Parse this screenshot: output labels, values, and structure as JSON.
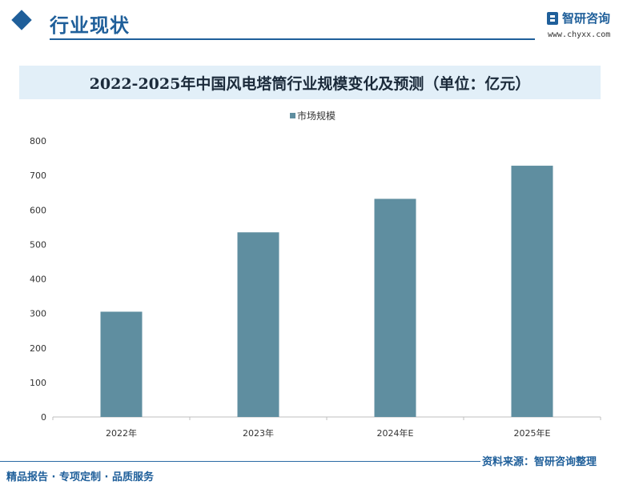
{
  "header": {
    "section_title": "行业现状",
    "logo_name": "智研咨询",
    "logo_url": "www.chyxx.com"
  },
  "chart_data": {
    "type": "bar",
    "title": "2022-2025年中国风电塔筒行业规模变化及预测（单位：亿元）",
    "categories": [
      "2022年",
      "2023年",
      "2024年E",
      "2025年E"
    ],
    "series": [
      {
        "name": "市场规模",
        "values": [
          305,
          535,
          632,
          728
        ],
        "color": "#5f8ea0"
      }
    ],
    "ylim": [
      0,
      800
    ],
    "yticks": [
      0,
      100,
      200,
      300,
      400,
      500,
      600,
      700,
      800
    ],
    "grid": false,
    "legend": "top-center"
  },
  "footer": {
    "left": "精品报告 · 专项定制 · 品质服务",
    "right": "资料来源：智研咨询整理"
  }
}
